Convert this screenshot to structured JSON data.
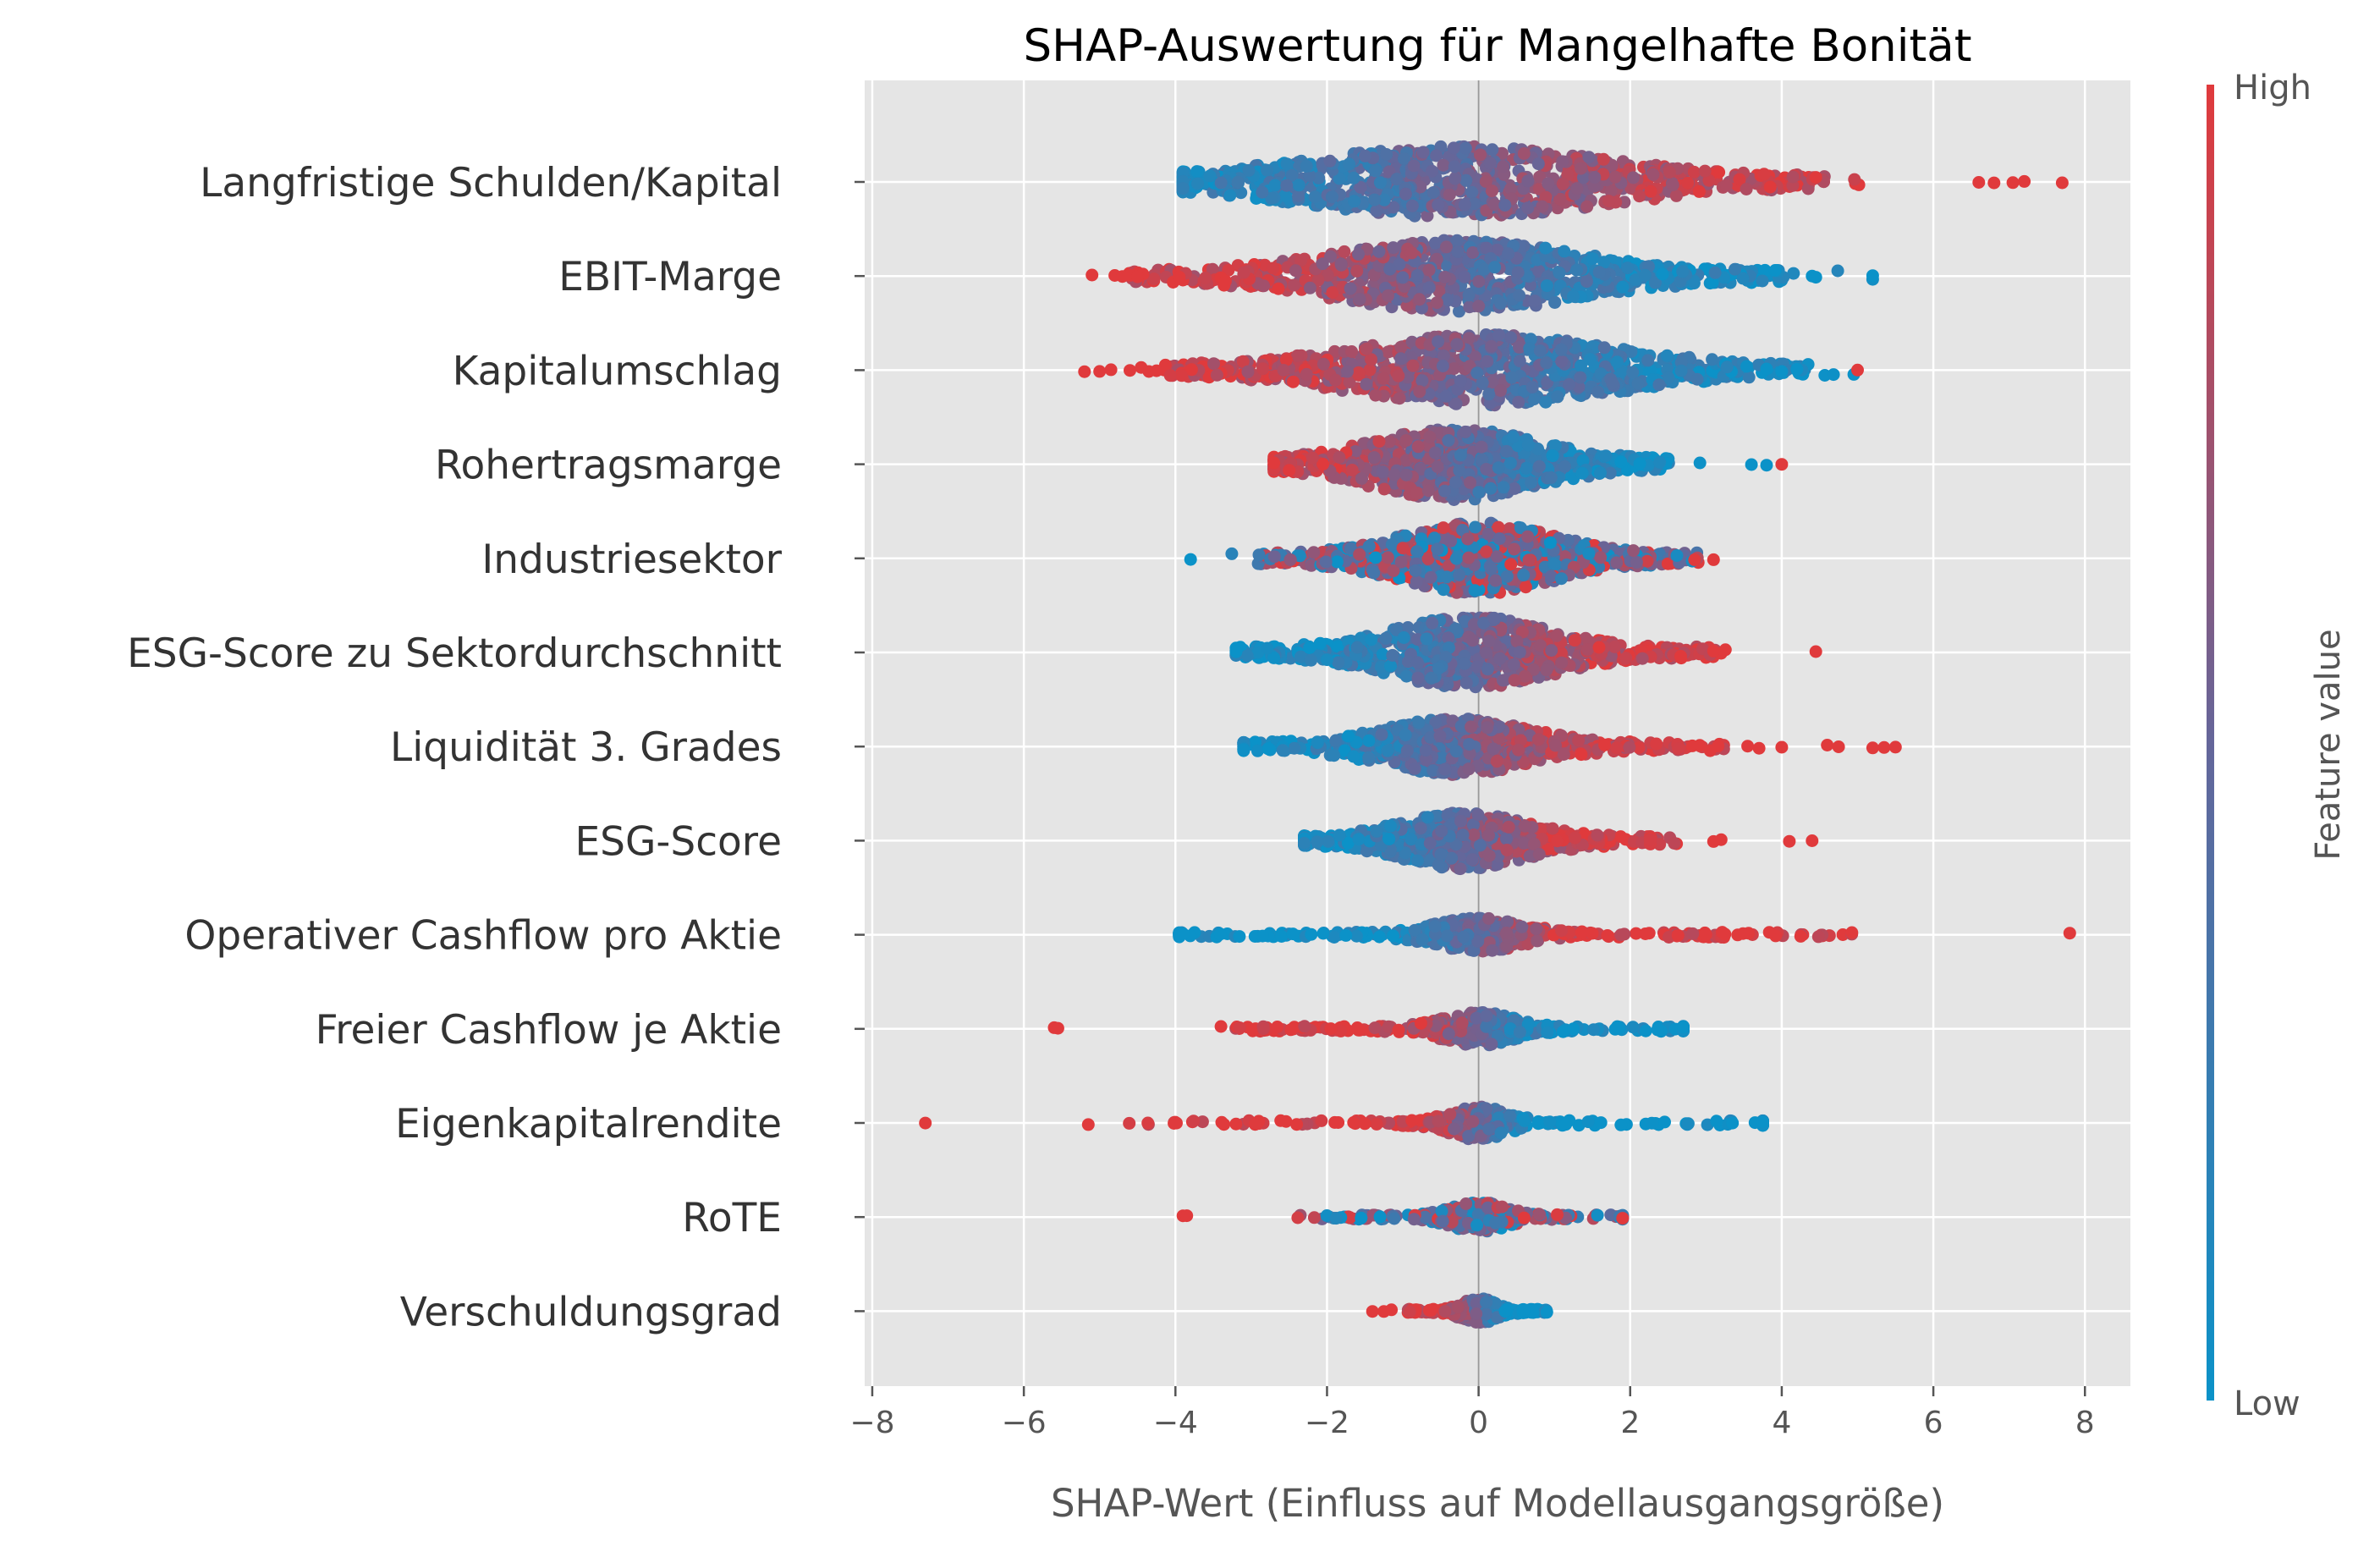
{
  "chart_data": {
    "type": "scatter",
    "subtype": "shap-beeswarm",
    "title": "SHAP-Auswertung für Mangelhafte Bonität",
    "xlabel": "SHAP-Wert (Einfluss auf Modellausgangsgröße)",
    "ylabel": "",
    "xlim": [
      -8.1,
      8.6
    ],
    "xticks": [
      -8,
      -6,
      -4,
      -2,
      0,
      2,
      4,
      6,
      8
    ],
    "xtick_labels": [
      "−8",
      "−6",
      "−4",
      "−2",
      "0",
      "2",
      "4",
      "6",
      "8"
    ],
    "grid": true,
    "colorbar": {
      "label": "Feature value",
      "high_label": "High",
      "low_label": "Low",
      "high_color": "#e03a3c",
      "low_color": "#0b92c8"
    },
    "colors": {
      "background": "#e5e5e5",
      "grid": "#ffffff",
      "text": "#333333",
      "axis_label": "#555555"
    },
    "features": [
      {
        "name": "Langfristige Schulden/Kapital",
        "min": -3.9,
        "max": 7.7,
        "center": -0.3,
        "sigma": 1.9,
        "spread": 0.38,
        "direction": 1,
        "count": 900,
        "outliers": [
          [
            7.7,
            1
          ],
          [
            7.2,
            1
          ],
          [
            7.05,
            1
          ],
          [
            6.8,
            1
          ],
          [
            6.6,
            1
          ]
        ]
      },
      {
        "name": "EBIT-Marge",
        "min": -5.1,
        "max": 5.2,
        "center": -0.3,
        "sigma": 1.55,
        "spread": 0.38,
        "direction": -1,
        "count": 850,
        "outliers": [
          [
            -5.1,
            1
          ],
          [
            -4.8,
            1
          ],
          [
            -4.7,
            1
          ],
          [
            -4.5,
            1
          ],
          [
            -3.95,
            1
          ],
          [
            5.2,
            0
          ],
          [
            4.4,
            0
          ],
          [
            4.45,
            0
          ]
        ]
      },
      {
        "name": "Kapitalumschlag",
        "min": -5.2,
        "max": 5.0,
        "center": 0.1,
        "sigma": 1.6,
        "spread": 0.38,
        "direction": -1,
        "count": 850,
        "outliers": [
          [
            -5.2,
            1
          ],
          [
            -5.0,
            1
          ],
          [
            -4.85,
            1
          ],
          [
            -4.6,
            1
          ],
          [
            -4.35,
            1
          ],
          [
            -4.25,
            1
          ],
          [
            5.0,
            1
          ],
          [
            4.2,
            0
          ],
          [
            4.0,
            0
          ],
          [
            3.8,
            0
          ]
        ]
      },
      {
        "name": "Rohertragsmarge",
        "min": -2.7,
        "max": 4.0,
        "center": -0.3,
        "sigma": 1.05,
        "spread": 0.38,
        "direction": -1,
        "count": 800,
        "outliers": [
          [
            -2.7,
            1
          ],
          [
            4.0,
            1
          ],
          [
            3.8,
            0
          ],
          [
            3.6,
            0
          ]
        ]
      },
      {
        "name": "Industriesektor",
        "min": -3.8,
        "max": 3.1,
        "center": 0.0,
        "sigma": 0.95,
        "spread": 0.38,
        "direction": 0,
        "count": 800,
        "outliers": [
          [
            -3.8,
            0
          ],
          [
            3.1,
            1
          ],
          [
            2.85,
            1
          ]
        ]
      },
      {
        "name": "ESG-Score zu Sektordurchschnitt",
        "min": -3.2,
        "max": 4.5,
        "center": -0.1,
        "sigma": 1.0,
        "spread": 0.38,
        "direction": 1,
        "count": 800,
        "outliers": [
          [
            -3.2,
            0
          ],
          [
            4.45,
            1
          ],
          [
            3.2,
            1
          ],
          [
            3.1,
            1
          ]
        ]
      },
      {
        "name": "Liquidität 3. Grades",
        "min": -3.1,
        "max": 5.5,
        "center": -0.3,
        "sigma": 0.9,
        "spread": 0.3,
        "direction": 1,
        "count": 650,
        "outliers": [
          [
            5.5,
            1
          ],
          [
            5.35,
            1
          ],
          [
            5.2,
            1
          ],
          [
            4.75,
            1
          ],
          [
            4.6,
            1
          ],
          [
            4.0,
            1
          ],
          [
            3.7,
            1
          ],
          [
            3.55,
            1
          ]
        ]
      },
      {
        "name": "ESG-Score",
        "min": -2.3,
        "max": 4.4,
        "center": -0.2,
        "sigma": 0.8,
        "spread": 0.3,
        "direction": 1,
        "count": 650,
        "outliers": [
          [
            4.4,
            1
          ],
          [
            4.1,
            1
          ],
          [
            3.2,
            1
          ],
          [
            3.1,
            1
          ]
        ]
      },
      {
        "name": "Operativer Cashflow pro Aktie",
        "min": -3.95,
        "max": 7.8,
        "center": 0.0,
        "sigma": 0.55,
        "spread": 0.18,
        "direction": 1,
        "count": 380,
        "outliers": [
          [
            7.8,
            1
          ],
          [
            2.2,
            1
          ],
          [
            1.7,
            1
          ],
          [
            1.5,
            1
          ],
          [
            -3.95,
            0
          ],
          [
            -3.9,
            0
          ],
          [
            -2.85,
            0
          ],
          [
            -2.6,
            0
          ],
          [
            -2.45,
            0
          ],
          [
            -2.05,
            0
          ],
          [
            -1.75,
            0
          ]
        ]
      },
      {
        "name": "Freier Cashflow je Aktie",
        "min": -5.6,
        "max": 2.7,
        "center": 0.0,
        "sigma": 0.45,
        "spread": 0.18,
        "direction": -1,
        "count": 380,
        "outliers": [
          [
            -5.6,
            1
          ],
          [
            -5.55,
            1
          ],
          [
            -1.95,
            1
          ],
          [
            -1.6,
            1
          ],
          [
            2.7,
            0
          ],
          [
            1.25,
            0
          ]
        ]
      },
      {
        "name": "Eigenkapitalrendite",
        "min": -7.3,
        "max": 3.75,
        "center": 0.0,
        "sigma": 0.35,
        "spread": 0.18,
        "direction": -1,
        "count": 320,
        "outliers": [
          [
            -7.3,
            1
          ],
          [
            -5.15,
            1
          ],
          [
            -3.2,
            1
          ],
          [
            -2.4,
            1
          ],
          [
            -1.65,
            1
          ],
          [
            -1.5,
            1
          ],
          [
            3.75,
            0
          ],
          [
            3.35,
            0
          ],
          [
            1.15,
            0
          ]
        ]
      },
      {
        "name": "RoTE",
        "min": -3.9,
        "max": 1.9,
        "center": 0.0,
        "sigma": 0.35,
        "spread": 0.16,
        "direction": 0,
        "count": 300,
        "outliers": [
          [
            -3.9,
            1
          ],
          [
            -3.85,
            1
          ],
          [
            1.9,
            1
          ],
          [
            -1.55,
            0
          ],
          [
            -1.3,
            0
          ],
          [
            0.6,
            1
          ]
        ]
      },
      {
        "name": "Verschuldungsgrad",
        "min": -1.4,
        "max": 0.9,
        "center": 0.0,
        "sigma": 0.2,
        "spread": 0.14,
        "direction": -1,
        "count": 260,
        "outliers": [
          [
            -1.4,
            1
          ],
          [
            -1.25,
            1
          ],
          [
            -1.15,
            1
          ],
          [
            -0.65,
            1
          ],
          [
            0.6,
            0
          ],
          [
            0.9,
            0
          ],
          [
            0.35,
            0
          ]
        ]
      }
    ]
  }
}
